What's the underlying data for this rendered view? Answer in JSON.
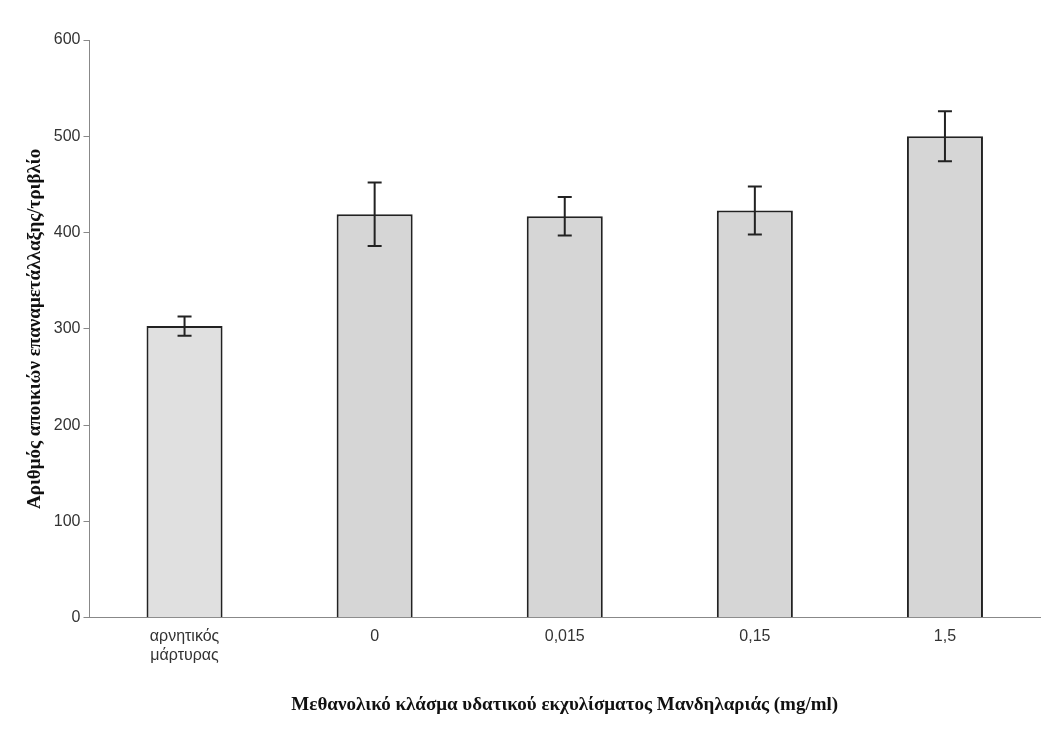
{
  "chart_data": {
    "type": "bar",
    "xlabel": "Μεθανολικό κλάσμα υδατικού εκχυλίσματος Μανδηλαριάς (mg/ml)",
    "ylabel": "Αριθμός αποικιών επαναμετάλλαξης/τριβλίο",
    "categories": [
      "αρνητικός μάρτυρας",
      "0",
      "0,015",
      "0,15",
      "1,5"
    ],
    "values": [
      303,
      419,
      417,
      423,
      500
    ],
    "errors": [
      10,
      33,
      20,
      25,
      26
    ],
    "colors": [
      "#e0e0e0",
      "#d6d6d6",
      "#d6d6d6",
      "#d6d6d6",
      "#d6d6d6"
    ],
    "ylim": [
      0,
      600
    ],
    "yticks": [
      0,
      100,
      200,
      300,
      400,
      500,
      600
    ],
    "grid": false,
    "legend": false
  }
}
